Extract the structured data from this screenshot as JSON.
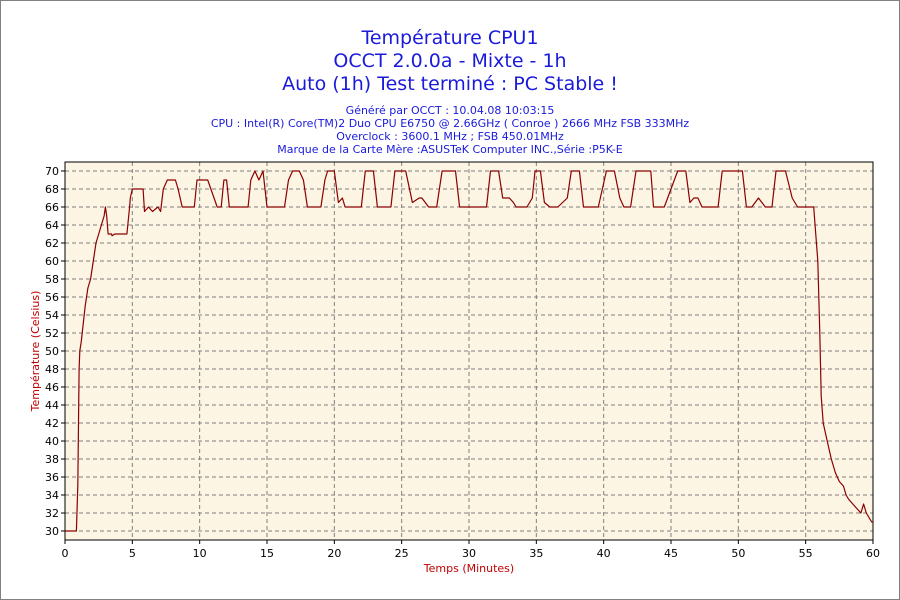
{
  "chart_data": {
    "type": "line",
    "title_lines": [
      "Température CPU1",
      "OCCT 2.0.0a - Mixte - 1h",
      "Auto (1h) Test terminé : PC Stable !"
    ],
    "subtitle_lines": [
      "Généré par OCCT : 10.04.08 10:03:15",
      "CPU : Intel(R) Core(TM)2 Duo CPU E6750 @ 2.66GHz ( Conroe ) 2666 MHz FSB 333MHz",
      "Overclock : 3600.1 MHz ; FSB 450.01MHz",
      "Marque de la Carte Mère :ASUSTeK Computer INC.,Série :P5K-E"
    ],
    "xlabel": "Temps (Minutes)",
    "ylabel": "Température (Celsius)",
    "xlim": [
      0,
      60
    ],
    "ylim": [
      29,
      71
    ],
    "xticks": [
      0,
      5,
      10,
      15,
      20,
      25,
      30,
      35,
      40,
      45,
      50,
      55,
      60
    ],
    "yticks": [
      30,
      32,
      34,
      36,
      38,
      40,
      42,
      44,
      46,
      48,
      50,
      52,
      54,
      56,
      58,
      60,
      62,
      64,
      66,
      68,
      70
    ],
    "grid": true,
    "colors": {
      "line": "#8b0000",
      "plot_bg": "#fdf5e4",
      "grid": "#808080",
      "title": "#1a1adc",
      "axis_label": "#c00000"
    },
    "series": [
      {
        "x": [
          0,
          0.3,
          0.6,
          0.85,
          0.95,
          1.0,
          1.05,
          1.1,
          1.2,
          1.35,
          1.5,
          1.7,
          1.9,
          2.1,
          2.3,
          2.5,
          2.7,
          2.9,
          3.0,
          3.1,
          3.2,
          3.3,
          3.45,
          3.5,
          3.7,
          4.0,
          4.3,
          4.6,
          4.8,
          4.85,
          5.0,
          5.3,
          5.6,
          5.8,
          5.9,
          6.2,
          6.5,
          6.9,
          7.1,
          7.3,
          7.6,
          8.2,
          8.4,
          8.7,
          9.0,
          9.6,
          9.8,
          10.1,
          10.6,
          11.3,
          11.6,
          11.8,
          12.0,
          12.2,
          12.6,
          13.6,
          13.8,
          14.1,
          14.4,
          14.7,
          15.0,
          15.3,
          15.7,
          16.3,
          16.6,
          16.9,
          17.4,
          17.7,
          18.0,
          18.2,
          19.0,
          19.3,
          19.5,
          20.0,
          20.3,
          20.6,
          20.8,
          21.0,
          21.3,
          22.0,
          22.3,
          22.6,
          22.9,
          23.2,
          23.5,
          24.2,
          24.5,
          24.8,
          25.3,
          25.8,
          26.3,
          26.5,
          27.0,
          27.3,
          27.6,
          28.0,
          28.6,
          29.0,
          29.3,
          29.7,
          30.0,
          31.3,
          31.6,
          31.9,
          32.2,
          32.5,
          33.0,
          33.3,
          33.5,
          34.3,
          34.7,
          34.9,
          35.3,
          35.6,
          36.0,
          36.3,
          36.6,
          37.3,
          37.6,
          37.9,
          38.2,
          38.5,
          38.9,
          39.3,
          39.6,
          40.2,
          40.5,
          40.8,
          41.2,
          41.5,
          41.8,
          42.0,
          42.4,
          42.8,
          43.5,
          43.7,
          44.0,
          44.5,
          45.5,
          45.7,
          46.1,
          46.4,
          46.7,
          47.0,
          47.3,
          48.0,
          48.2,
          48.5,
          48.8,
          49.5,
          50.0,
          50.3,
          50.6,
          51.0,
          51.5,
          52.0,
          52.2,
          52.5,
          52.8,
          53.2,
          53.5,
          54.0,
          54.2,
          54.4,
          54.8,
          55.0,
          55.3,
          55.6,
          55.9,
          56.05,
          56.15,
          56.3,
          56.6,
          56.9,
          57.2,
          57.5,
          57.8,
          58.0,
          58.2,
          58.5,
          58.8,
          59.1,
          59.3,
          59.5,
          59.7,
          59.9,
          60.0
        ],
        "y": [
          30,
          30,
          30,
          30,
          35,
          42,
          48,
          50,
          51,
          53,
          55,
          57,
          58,
          60,
          62,
          63,
          64,
          65,
          66,
          65,
          63,
          63,
          63,
          62.8,
          63,
          63,
          63,
          63,
          66,
          67,
          68,
          68,
          68,
          68,
          65.5,
          66,
          65.5,
          66,
          65.5,
          68,
          69,
          69,
          68,
          66,
          66,
          66,
          69,
          69,
          69,
          66,
          66,
          69,
          69,
          66,
          66,
          66,
          69,
          70,
          69,
          70,
          66,
          66,
          66,
          66,
          69,
          70,
          70,
          69,
          66,
          66,
          66,
          69,
          70,
          70,
          66.5,
          67,
          66,
          66,
          66,
          66,
          70,
          70,
          70,
          66,
          66,
          66,
          70,
          70,
          70,
          66.5,
          67,
          67,
          66,
          66,
          66,
          70,
          70,
          70,
          66,
          66,
          66,
          66,
          70,
          70,
          70,
          67,
          67,
          66.5,
          66,
          66,
          67,
          70,
          70,
          66.5,
          66,
          66,
          66,
          67,
          70,
          70,
          70,
          66,
          66,
          66,
          66,
          70,
          70,
          70,
          67,
          66,
          66,
          66,
          70,
          70,
          70,
          66,
          66,
          66,
          70,
          70,
          70,
          66.5,
          67,
          67,
          66,
          66,
          66,
          66,
          70,
          70,
          70,
          70,
          66,
          66,
          67,
          66,
          66,
          66,
          70,
          70,
          70,
          67,
          66.5,
          66,
          66,
          66,
          66,
          66,
          60,
          52,
          45,
          42,
          40,
          38,
          36.5,
          35.5,
          35,
          34,
          33.5,
          33,
          32.5,
          32,
          33,
          32,
          31.5,
          31,
          31
        ]
      }
    ]
  }
}
